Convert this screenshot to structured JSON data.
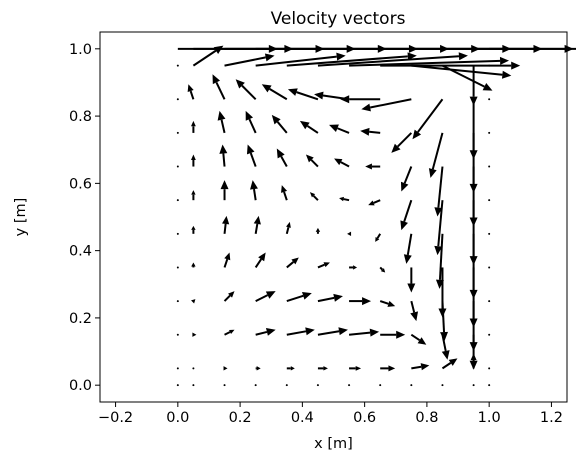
{
  "chart_data": {
    "type": "quiver",
    "title": "Velocity vectors",
    "xlabel": "x [m]",
    "ylabel": "y [m]",
    "xlim": [
      -0.25,
      1.25
    ],
    "ylim": [
      -0.05,
      1.05
    ],
    "xticks": [
      "−0.2",
      "0.0",
      "0.2",
      "0.4",
      "0.6",
      "0.8",
      "1.0",
      "1.2"
    ],
    "yticks": [
      "0.0",
      "0.2",
      "0.4",
      "0.6",
      "0.8",
      "1.0"
    ],
    "grid": false,
    "legend": false,
    "x": [
      0.0,
      0.05,
      0.15,
      0.25,
      0.35,
      0.45,
      0.55,
      0.65,
      0.75,
      0.85,
      0.95,
      1.0
    ],
    "y": [
      0.0,
      0.05,
      0.15,
      0.25,
      0.35,
      0.45,
      0.55,
      0.65,
      0.75,
      0.85,
      0.95,
      1.0
    ],
    "u": [
      [
        0,
        0,
        0,
        0,
        0,
        0,
        0,
        0,
        0,
        0,
        0,
        0
      ],
      [
        0,
        0,
        0.003,
        0.005,
        0.008,
        0.01,
        0.012,
        0.015,
        0.018,
        0.015,
        0,
        0
      ],
      [
        0,
        0.003,
        0.01,
        0.02,
        0.028,
        0.03,
        0.03,
        0.025,
        0.015,
        0.005,
        0,
        0
      ],
      [
        0,
        0.002,
        0.01,
        0.02,
        0.025,
        0.025,
        0.022,
        0.015,
        0.005,
        0.002,
        0,
        0
      ],
      [
        0,
        0,
        0.005,
        0.01,
        0.012,
        0.012,
        0.008,
        0.005,
        0.0,
        0.0,
        0,
        0
      ],
      [
        0,
        0,
        0.002,
        0.003,
        0.003,
        0.0,
        -0.002,
        -0.005,
        -0.005,
        -0.003,
        0,
        0
      ],
      [
        0,
        0,
        0.0,
        -0.003,
        -0.005,
        -0.008,
        -0.01,
        -0.012,
        -0.01,
        -0.005,
        0,
        0
      ],
      [
        0,
        0,
        -0.002,
        -0.008,
        -0.01,
        -0.012,
        -0.015,
        -0.015,
        -0.01,
        -0.005,
        0,
        0
      ],
      [
        0,
        0,
        -0.005,
        -0.01,
        -0.015,
        -0.018,
        -0.02,
        -0.02,
        -0.02,
        -0.012,
        0,
        0
      ],
      [
        0,
        -0.005,
        -0.012,
        -0.02,
        -0.025,
        -0.03,
        -0.035,
        -0.04,
        -0.05,
        -0.03,
        0,
        0
      ],
      [
        0,
        0.03,
        0.05,
        0.09,
        0.13,
        0.15,
        0.16,
        0.14,
        0.1,
        0.05,
        0,
        0
      ],
      [
        0.1,
        0.1,
        0.1,
        0.1,
        0.1,
        0.1,
        0.1,
        0.1,
        0.1,
        0.1,
        0.1,
        0.1
      ]
    ],
    "v": [
      [
        0,
        0,
        0,
        0,
        0,
        0,
        0,
        0,
        0,
        0,
        0,
        0
      ],
      [
        0,
        0,
        0,
        0,
        0,
        0,
        0,
        0,
        0.003,
        0.01,
        0.015,
        0
      ],
      [
        0,
        0,
        0.005,
        0.005,
        0.005,
        0.005,
        0.003,
        0.0,
        -0.01,
        -0.025,
        -0.035,
        0
      ],
      [
        0,
        0.002,
        0.01,
        0.01,
        0.008,
        0.005,
        0.0,
        -0.005,
        -0.02,
        -0.04,
        -0.05,
        0
      ],
      [
        0,
        0.005,
        0.015,
        0.015,
        0.01,
        0.005,
        0.0,
        -0.005,
        -0.025,
        -0.05,
        -0.06,
        0
      ],
      [
        0,
        0.008,
        0.018,
        0.018,
        0.012,
        0.006,
        0.0,
        -0.008,
        -0.03,
        -0.055,
        -0.065,
        0
      ],
      [
        0,
        0.01,
        0.02,
        0.02,
        0.015,
        0.008,
        0.002,
        -0.005,
        -0.03,
        -0.055,
        -0.065,
        0
      ],
      [
        0,
        0.012,
        0.022,
        0.022,
        0.018,
        0.012,
        0.008,
        0.0,
        -0.025,
        -0.05,
        -0.06,
        0
      ],
      [
        0,
        0.012,
        0.022,
        0.022,
        0.018,
        0.012,
        0.008,
        0.002,
        -0.02,
        -0.045,
        -0.06,
        0
      ],
      [
        0,
        0.015,
        0.025,
        0.02,
        0.015,
        0.01,
        0.005,
        0.0,
        -0.01,
        -0.04,
        -0.06,
        0
      ],
      [
        0,
        0.02,
        0.01,
        0.01,
        0.01,
        0.01,
        0.005,
        0.0,
        -0.01,
        -0.025,
        -0.04,
        0
      ],
      [
        0,
        0,
        0,
        0,
        0,
        0,
        0,
        0,
        0,
        0,
        0,
        0
      ]
    ],
    "color": "#000000"
  }
}
